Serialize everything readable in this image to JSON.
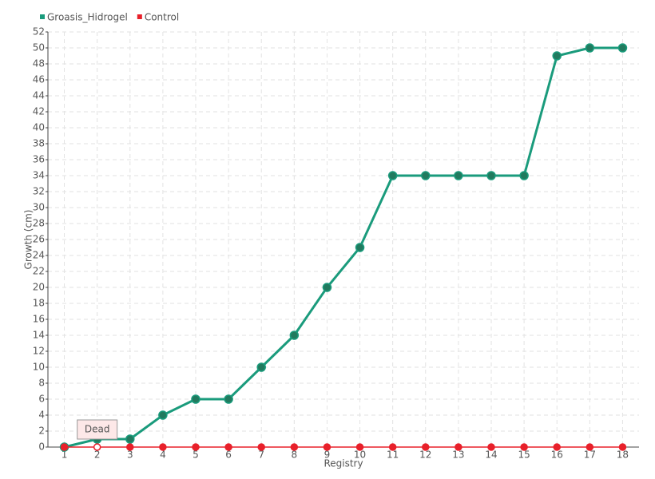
{
  "chart_data": {
    "type": "line",
    "ylabel": "Growth (cm)",
    "xlabel": "Registry",
    "categories": [
      1,
      2,
      3,
      4,
      5,
      6,
      7,
      8,
      9,
      10,
      11,
      12,
      13,
      14,
      15,
      16,
      17,
      18
    ],
    "series": [
      {
        "name": "Groasis_Hidrogel",
        "color": "#1a9b7c",
        "values": [
          0,
          1,
          1,
          4,
          6,
          6,
          10,
          14,
          20,
          25,
          34,
          34,
          34,
          34,
          34,
          49,
          50,
          50
        ]
      },
      {
        "name": "Control",
        "color": "#e8202a",
        "values": [
          0,
          0,
          0,
          0,
          0,
          0,
          0,
          0,
          0,
          0,
          0,
          0,
          0,
          0,
          0,
          0,
          0,
          0
        ]
      }
    ],
    "annotation": {
      "text": "Dead",
      "category": 2
    },
    "ylim": [
      0,
      52
    ],
    "yticks": [
      0,
      2,
      4,
      6,
      8,
      10,
      12,
      14,
      16,
      18,
      20,
      22,
      24,
      26,
      28,
      30,
      32,
      34,
      36,
      38,
      40,
      42,
      44,
      46,
      48,
      50,
      52
    ],
    "grid": true,
    "legend": "top-left"
  }
}
